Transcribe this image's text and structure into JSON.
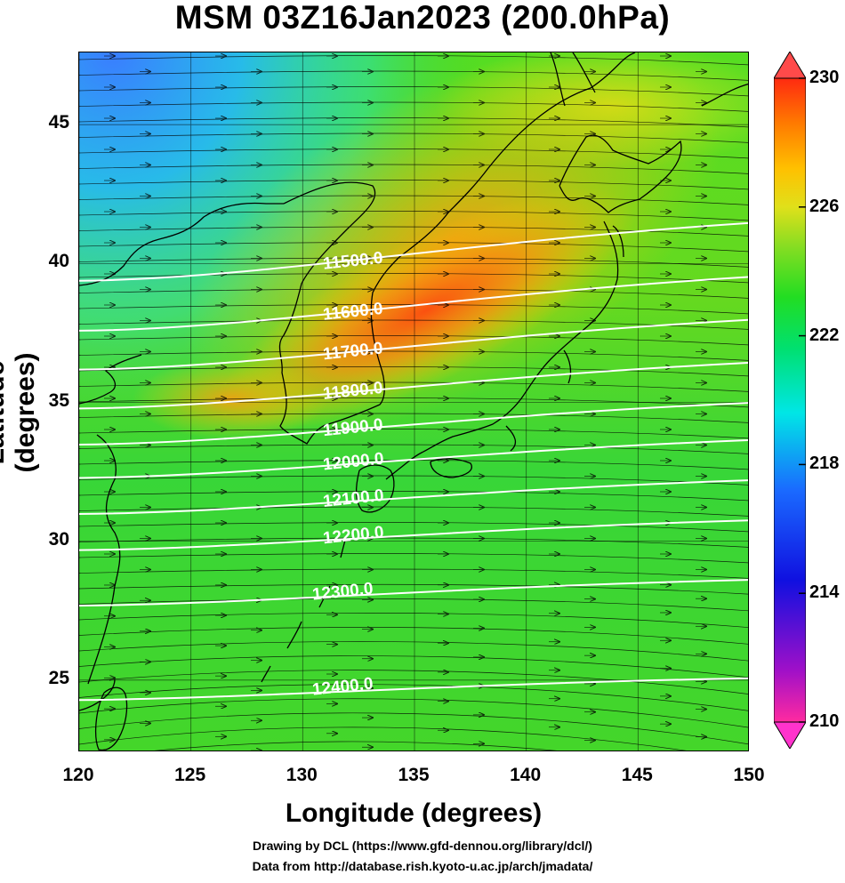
{
  "title": "MSM 03Z16Jan2023 (200.0hPa)",
  "axes": {
    "xlabel": "Longitude (degrees)",
    "ylabel": "Latitude  (degrees)",
    "xticks": [
      "120",
      "125",
      "130",
      "135",
      "140",
      "145",
      "150"
    ],
    "yticks": [
      "25",
      "30",
      "35",
      "40",
      "45"
    ],
    "xlim": [
      120,
      150
    ],
    "ylim": [
      22.4,
      47.6
    ]
  },
  "colorbar": {
    "labels": [
      "230",
      "226",
      "222",
      "218",
      "214",
      "210"
    ],
    "range": [
      210,
      230
    ],
    "stops": [
      "#ff3399",
      "#9900cc",
      "#1a1ae6",
      "#0088ff",
      "#00e6e6",
      "#00e070",
      "#22dd22",
      "#66dd22",
      "#c8e61a",
      "#ffcc00",
      "#ff8800",
      "#ff3300"
    ]
  },
  "contours": [
    {
      "label": "11500.0",
      "lat": 39.7
    },
    {
      "label": "11600.0",
      "lat": 37.9
    },
    {
      "label": "11700.0",
      "lat": 36.5
    },
    {
      "label": "11800.0",
      "lat": 35.1
    },
    {
      "label": "11900.0",
      "lat": 33.8
    },
    {
      "label": "12000.0",
      "lat": 32.6
    },
    {
      "label": "12100.0",
      "lat": 31.3
    },
    {
      "label": "12200.0",
      "lat": 30.0
    },
    {
      "label": "12300.0",
      "lat": 28.0
    },
    {
      "label": "12400.0",
      "lat": 24.6
    }
  ],
  "credits": {
    "line1": "Drawing by DCL (https://www.gfd-dennou.org/library/dcl/)",
    "line2": "Data from http://database.rish.kyoto-u.ac.jp/arch/jmadata/"
  },
  "colors": {
    "background_field": "#33d633",
    "warm_core": "#ff5a10",
    "cold_corner": "#3399ff",
    "contour": "#ffffff",
    "coastline": "#000000"
  }
}
